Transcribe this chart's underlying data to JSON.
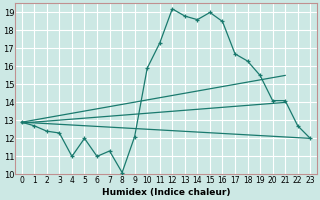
{
  "title": "",
  "xlabel": "Humidex (Indice chaleur)",
  "ylabel": "",
  "background_color": "#cce8e4",
  "grid_color": "#ffffff",
  "line_color": "#1a7a6e",
  "xlim": [
    -0.5,
    23.5
  ],
  "ylim": [
    10,
    19.5
  ],
  "yticks": [
    10,
    11,
    12,
    13,
    14,
    15,
    16,
    17,
    18,
    19
  ],
  "xticks": [
    0,
    1,
    2,
    3,
    4,
    5,
    6,
    7,
    8,
    9,
    10,
    11,
    12,
    13,
    14,
    15,
    16,
    17,
    18,
    19,
    20,
    21,
    22,
    23
  ],
  "main_line": {
    "x": [
      0,
      1,
      2,
      3,
      4,
      5,
      6,
      7,
      8,
      9,
      10,
      11,
      12,
      13,
      14,
      15,
      16,
      17,
      18,
      19,
      20,
      21,
      22,
      23
    ],
    "y": [
      12.9,
      12.7,
      12.4,
      12.3,
      11.0,
      12.0,
      11.0,
      11.3,
      10.1,
      12.1,
      15.9,
      17.3,
      19.2,
      18.8,
      18.6,
      19.0,
      18.5,
      16.7,
      16.3,
      15.5,
      14.1,
      14.1,
      12.7,
      12.0
    ]
  },
  "line1": {
    "x": [
      0,
      21
    ],
    "y": [
      12.9,
      15.5
    ]
  },
  "line2": {
    "x": [
      0,
      21
    ],
    "y": [
      12.85,
      14.0
    ]
  },
  "line3": {
    "x": [
      0,
      23
    ],
    "y": [
      12.9,
      12.0
    ]
  }
}
